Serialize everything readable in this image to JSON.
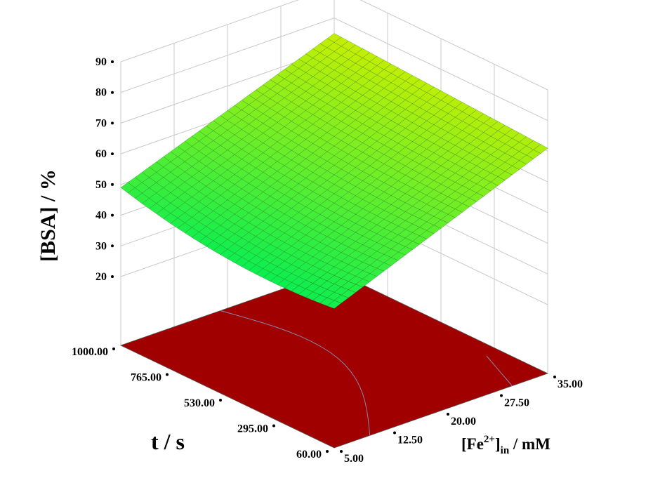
{
  "chart_data": {
    "type": "surface3d",
    "zlabel": "[BSA] / %",
    "xlabel_main": "t / s",
    "ylabel": {
      "prefix": "[Fe",
      "sup": "2+",
      "mid": "]",
      "sub": "in",
      "suffix": " / mM"
    },
    "zticks": [
      "20",
      "30",
      "40",
      "50",
      "60",
      "70",
      "80",
      "90"
    ],
    "t_ticks": [
      "60.00",
      "295.00",
      "530.00",
      "765.00",
      "1000.00"
    ],
    "fe_ticks": [
      "5.00",
      "12.50",
      "20.00",
      "27.50",
      "35.00"
    ],
    "t_range": [
      60,
      1000
    ],
    "fe_range": [
      5,
      35
    ],
    "z_range": [
      20,
      90
    ],
    "surface_corners": {
      "t_1000_fe_5": 49,
      "t_60_fe_5": 43,
      "t_60_fe_35": 71,
      "t_1000_fe_35": 75
    },
    "surface_color_low": "#00ee55",
    "surface_color_high": "#ccee00",
    "floor_color": "#a00000",
    "contour_color": "#8888aa",
    "grid": true
  }
}
